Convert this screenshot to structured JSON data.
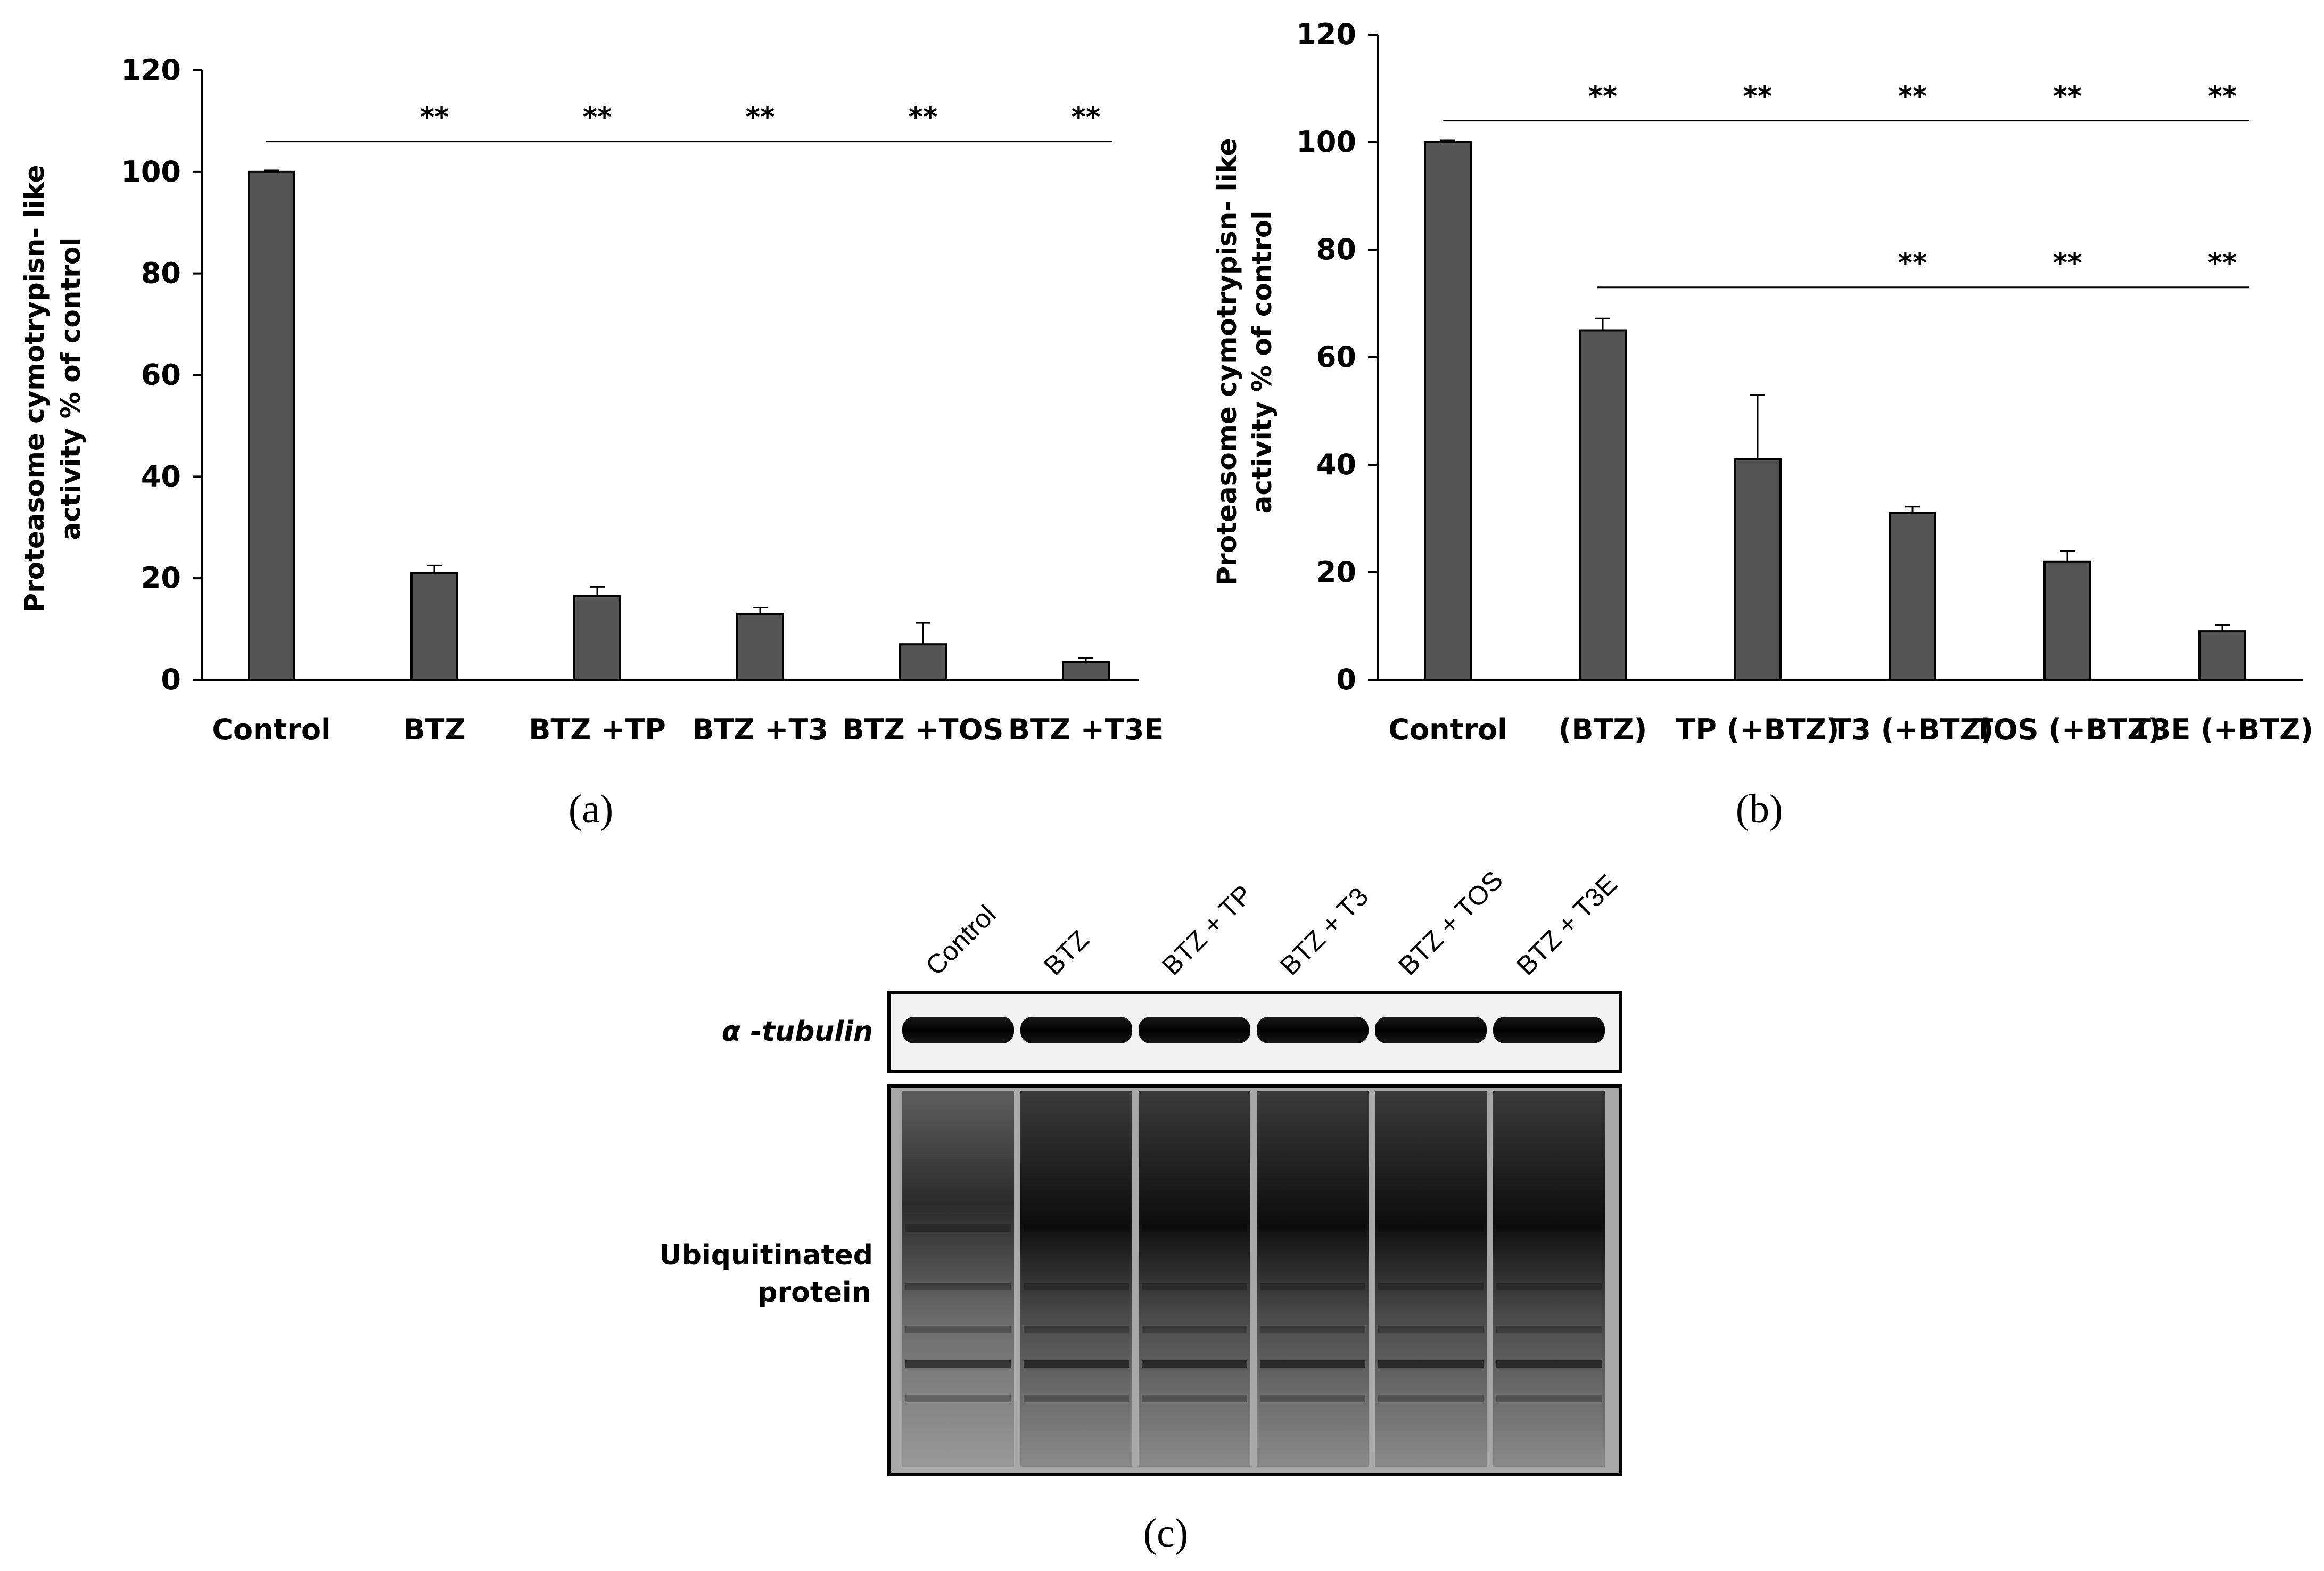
{
  "chart_data": [
    {
      "type": "bar",
      "panel": "(a)",
      "categories": [
        "Control",
        "BTZ",
        "BTZ +TP",
        "BTZ +T3",
        "BTZ +TOS",
        "BTZ +T3E"
      ],
      "values": [
        100,
        21,
        16.5,
        13,
        7,
        3.5
      ],
      "errors": [
        0.3,
        1.5,
        1.8,
        1.2,
        4.2,
        0.8
      ],
      "ylabel_line1": "Proteasome  cymotrypisn-  like",
      "ylabel_line2": "activity % of control",
      "ylim": [
        0,
        120
      ],
      "yticks": [
        0,
        20,
        40,
        60,
        80,
        100,
        120
      ],
      "bar_color": "#555555",
      "significance": [
        {
          "label": "**",
          "reference": "Control",
          "marks": [
            "BTZ",
            "BTZ +TP",
            "BTZ +T3",
            "BTZ +TOS",
            "BTZ +T3E"
          ],
          "line_value": 106,
          "span": [
            "Control",
            "BTZ +T3E"
          ]
        }
      ]
    },
    {
      "type": "bar",
      "panel": "(b)",
      "categories": [
        "Control",
        "(BTZ)",
        "TP (+BTZ)",
        "T3 (+BTZ)",
        "TOS (+BTZ)",
        "T3E (+BTZ)"
      ],
      "values": [
        100,
        65,
        41,
        31,
        22,
        9
      ],
      "errors": [
        0.3,
        2.2,
        12,
        1.2,
        2,
        1.2
      ],
      "ylabel_line1": "Proteasome  cymotrypisn-  like",
      "ylabel_line2": "activity % of control",
      "ylim": [
        0,
        120
      ],
      "yticks": [
        0,
        20,
        40,
        60,
        80,
        100,
        120
      ],
      "bar_color": "#555555",
      "significance": [
        {
          "label": "**",
          "reference": "Control",
          "marks": [
            "(BTZ)",
            "TP (+BTZ)",
            "T3 (+BTZ)",
            "TOS (+BTZ)",
            "T3E (+BTZ)"
          ],
          "line_value": 104,
          "span": [
            "Control",
            "T3E (+BTZ)"
          ]
        },
        {
          "label": "**",
          "reference": "(BTZ)",
          "marks": [
            "T3 (+BTZ)",
            "TOS (+BTZ)",
            "T3E (+BTZ)"
          ],
          "line_value": 73,
          "span": [
            "(BTZ)",
            "T3E (+BTZ)"
          ]
        }
      ]
    }
  ],
  "blot": {
    "panel": "(c)",
    "lanes": [
      "Control",
      "BTZ",
      "BTZ + TP",
      "BTZ + T3",
      "BTZ + TOS",
      "BTZ + T3E"
    ],
    "tubulin_label": "α -tubulin",
    "ubiquitin_label_line1": "Ubiquitinated",
    "ubiquitin_label_line2": "protein"
  }
}
